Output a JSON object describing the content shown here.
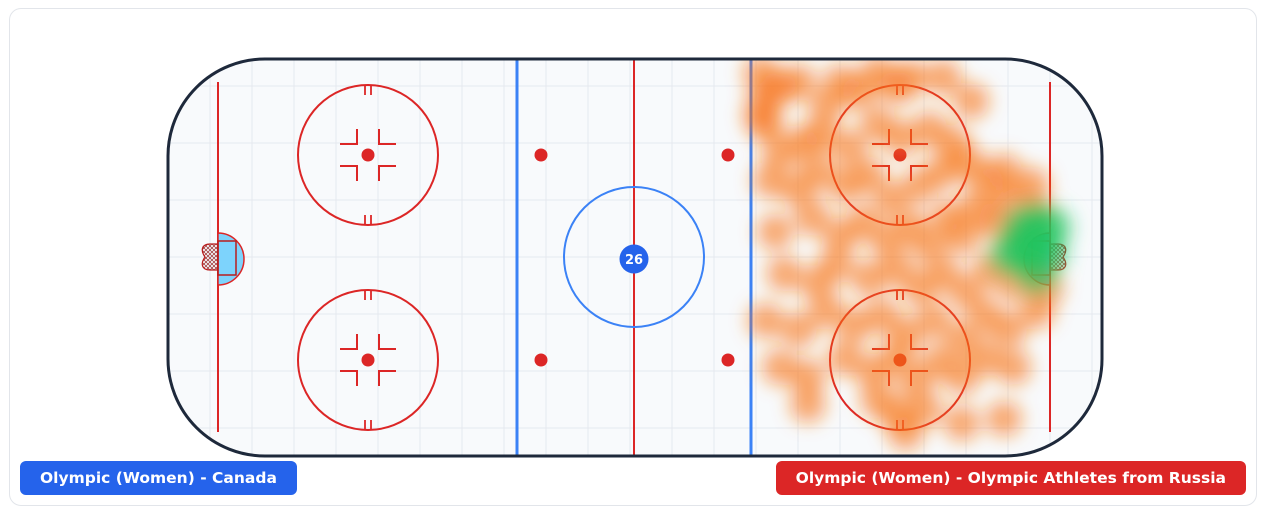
{
  "home_team": {
    "label": "Olympic (Women) - Canada",
    "color": "#2563eb"
  },
  "away_team": {
    "label": "Olympic (Women) - Olympic Athletes from Russia",
    "color": "#dc2626"
  },
  "center_marker": {
    "value": "26",
    "color": "#2563eb"
  },
  "colors": {
    "board": "#1e293b",
    "ice": "#f8fafc",
    "red_line": "#dc2626",
    "blue_line": "#3b82f6",
    "crease": "#7dd3fc",
    "heat_low": "#f97316",
    "heat_high": "#22c55e"
  },
  "chart_data": {
    "type": "heatmap",
    "description_of_axes": "rink coordinates in feet, x from 0 (left end boards) to 200 (right end boards), y from 0 (top boards) to 85 (bottom boards)",
    "xlim": [
      0,
      200
    ],
    "ylim": [
      0,
      85
    ],
    "points": [
      {
        "x": 127,
        "y": 3,
        "w": 1
      },
      {
        "x": 127,
        "y": 12,
        "w": 1
      },
      {
        "x": 128,
        "y": 8,
        "w": 1
      },
      {
        "x": 128,
        "y": 14,
        "w": 1
      },
      {
        "x": 131,
        "y": 6,
        "w": 1
      },
      {
        "x": 135,
        "y": 5,
        "w": 1
      },
      {
        "x": 141,
        "y": 10,
        "w": 1
      },
      {
        "x": 144,
        "y": 5,
        "w": 1
      },
      {
        "x": 148,
        "y": 7,
        "w": 1
      },
      {
        "x": 152,
        "y": 3,
        "w": 1
      },
      {
        "x": 156,
        "y": 6,
        "w": 1
      },
      {
        "x": 159,
        "y": 4,
        "w": 1
      },
      {
        "x": 166,
        "y": 4,
        "w": 1
      },
      {
        "x": 172,
        "y": 9,
        "w": 1
      },
      {
        "x": 131,
        "y": 20,
        "w": 1
      },
      {
        "x": 136,
        "y": 18,
        "w": 1
      },
      {
        "x": 140,
        "y": 16,
        "w": 1
      },
      {
        "x": 146,
        "y": 19,
        "w": 1
      },
      {
        "x": 152,
        "y": 14,
        "w": 1
      },
      {
        "x": 157,
        "y": 17,
        "w": 1
      },
      {
        "x": 163,
        "y": 15,
        "w": 1
      },
      {
        "x": 168,
        "y": 18,
        "w": 1
      },
      {
        "x": 129,
        "y": 26,
        "w": 1
      },
      {
        "x": 135,
        "y": 28,
        "w": 1
      },
      {
        "x": 139,
        "y": 24,
        "w": 1
      },
      {
        "x": 145,
        "y": 27,
        "w": 1
      },
      {
        "x": 150,
        "y": 25,
        "w": 1
      },
      {
        "x": 155,
        "y": 30,
        "w": 1
      },
      {
        "x": 161,
        "y": 27,
        "w": 1
      },
      {
        "x": 166,
        "y": 24,
        "w": 1
      },
      {
        "x": 171,
        "y": 22,
        "w": 1
      },
      {
        "x": 175,
        "y": 26,
        "w": 1
      },
      {
        "x": 179,
        "y": 24,
        "w": 1
      },
      {
        "x": 130,
        "y": 37,
        "w": 1
      },
      {
        "x": 138,
        "y": 34,
        "w": 1
      },
      {
        "x": 144,
        "y": 38,
        "w": 1
      },
      {
        "x": 149,
        "y": 35,
        "w": 1
      },
      {
        "x": 154,
        "y": 39,
        "w": 1
      },
      {
        "x": 159,
        "y": 36,
        "w": 1
      },
      {
        "x": 163,
        "y": 40,
        "w": 1
      },
      {
        "x": 167,
        "y": 34,
        "w": 1
      },
      {
        "x": 170,
        "y": 38,
        "w": 1
      },
      {
        "x": 173,
        "y": 32,
        "w": 1
      },
      {
        "x": 177,
        "y": 35,
        "w": 1
      },
      {
        "x": 180,
        "y": 30,
        "w": 1
      },
      {
        "x": 182,
        "y": 38,
        "w": 1
      },
      {
        "x": 185,
        "y": 27,
        "w": 1
      },
      {
        "x": 186,
        "y": 33,
        "w": 1
      },
      {
        "x": 132,
        "y": 46,
        "w": 1
      },
      {
        "x": 139,
        "y": 48,
        "w": 1
      },
      {
        "x": 143,
        "y": 44,
        "w": 1
      },
      {
        "x": 150,
        "y": 47,
        "w": 1
      },
      {
        "x": 156,
        "y": 45,
        "w": 1
      },
      {
        "x": 161,
        "y": 49,
        "w": 1
      },
      {
        "x": 166,
        "y": 46,
        "w": 1
      },
      {
        "x": 171,
        "y": 50,
        "w": 1
      },
      {
        "x": 176,
        "y": 45,
        "w": 1
      },
      {
        "x": 181,
        "y": 48,
        "w": 1
      },
      {
        "x": 185,
        "y": 44,
        "w": 1
      },
      {
        "x": 188,
        "y": 49,
        "w": 1
      },
      {
        "x": 128,
        "y": 56,
        "w": 1
      },
      {
        "x": 135,
        "y": 58,
        "w": 1
      },
      {
        "x": 141,
        "y": 54,
        "w": 1
      },
      {
        "x": 147,
        "y": 57,
        "w": 1
      },
      {
        "x": 153,
        "y": 55,
        "w": 1
      },
      {
        "x": 158,
        "y": 59,
        "w": 1
      },
      {
        "x": 164,
        "y": 56,
        "w": 1
      },
      {
        "x": 170,
        "y": 60,
        "w": 1
      },
      {
        "x": 175,
        "y": 55,
        "w": 1
      },
      {
        "x": 180,
        "y": 58,
        "w": 1
      },
      {
        "x": 186,
        "y": 54,
        "w": 1
      },
      {
        "x": 131,
        "y": 66,
        "w": 1
      },
      {
        "x": 137,
        "y": 68,
        "w": 1
      },
      {
        "x": 145,
        "y": 64,
        "w": 1
      },
      {
        "x": 151,
        "y": 67,
        "w": 1
      },
      {
        "x": 156,
        "y": 64,
        "w": 1
      },
      {
        "x": 160,
        "y": 69,
        "w": 1
      },
      {
        "x": 165,
        "y": 65,
        "w": 1
      },
      {
        "x": 170,
        "y": 68,
        "w": 1
      },
      {
        "x": 175,
        "y": 64,
        "w": 1
      },
      {
        "x": 181,
        "y": 66,
        "w": 1
      },
      {
        "x": 137,
        "y": 74,
        "w": 1
      },
      {
        "x": 152,
        "y": 73,
        "w": 1
      },
      {
        "x": 156,
        "y": 76,
        "w": 1
      },
      {
        "x": 158,
        "y": 80,
        "w": 1
      },
      {
        "x": 162,
        "y": 75,
        "w": 1
      },
      {
        "x": 170,
        "y": 78,
        "w": 1
      },
      {
        "x": 179,
        "y": 77,
        "w": 1
      },
      {
        "x": 183,
        "y": 36,
        "w": 3
      },
      {
        "x": 185,
        "y": 40,
        "w": 3
      },
      {
        "x": 186,
        "y": 35,
        "w": 3
      },
      {
        "x": 184,
        "y": 42,
        "w": 2
      },
      {
        "x": 187,
        "y": 38,
        "w": 3
      },
      {
        "x": 188,
        "y": 42,
        "w": 2
      },
      {
        "x": 182,
        "y": 40,
        "w": 2
      },
      {
        "x": 186,
        "y": 46,
        "w": 2
      },
      {
        "x": 189,
        "y": 36,
        "w": 2
      },
      {
        "x": 180,
        "y": 42,
        "w": 2
      }
    ]
  }
}
